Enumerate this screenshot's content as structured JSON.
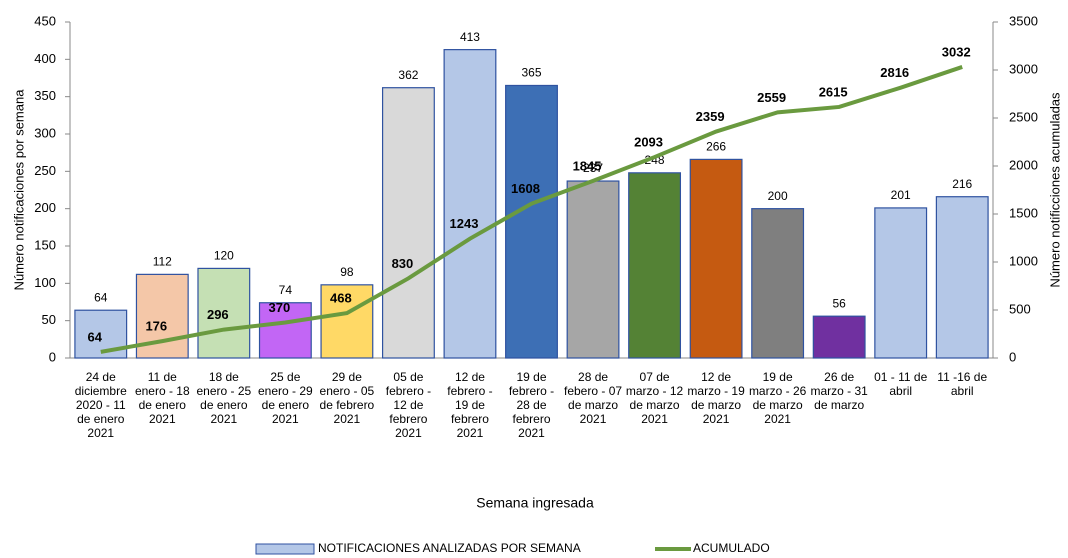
{
  "chart_data": {
    "type": "bar_line",
    "xlabel": "Semana ingresada",
    "ylabel": "Número notificaciones por semana",
    "y2label": "Número notificciones acumuladas",
    "categories": [
      "24 de diciembre 2020 - 11 de enero 2021",
      "11 de enero - 18 de enero 2021",
      "18 de enero - 25 de enero 2021",
      "25 de enero - 29 de enero 2021",
      "29 de enero - 05 de febrero 2021",
      "05 de febrero - 12 de febrero 2021",
      "12 de febrero - 19 de febrero 2021",
      "19 de febrero - 28 de febrero 2021",
      "28 de febero - 07 de marzo 2021",
      "07 de marzo - 12 de marzo 2021",
      "12 de marzo - 19 de marzo 2021",
      "19 de marzo - 26 de marzo 2021",
      "26 de marzo - 31 de marzo",
      "01 - 11 de abril",
      "11 -16 de abril"
    ],
    "series": [
      {
        "name": "NOTIFICACIONES ANALIZADAS POR SEMANA",
        "type": "bar",
        "color": "#b4c7e7",
        "colors": [
          "#b4c7e7",
          "#f4c7a8",
          "#c5e0b4",
          "#c266f5",
          "#ffd966",
          "#d9d9d9",
          "#b4c7e7",
          "#3d6fb5",
          "#a6a6a6",
          "#548235",
          "#c55a11",
          "#7f7f7f",
          "#7030a0",
          "#b4c7e7",
          "#b4c7e7"
        ],
        "values": [
          64,
          112,
          120,
          74,
          98,
          362,
          413,
          365,
          237,
          248,
          266,
          200,
          56,
          201,
          216
        ]
      },
      {
        "name": "ACUMULADO",
        "type": "line",
        "color": "#6a9a3f",
        "axis": "y2",
        "values": [
          64,
          176,
          296,
          370,
          468,
          830,
          1243,
          1608,
          1845,
          2093,
          2359,
          2559,
          2615,
          2816,
          3032
        ]
      }
    ],
    "ylim": [
      0,
      450
    ],
    "yticks": [
      0,
      50,
      100,
      150,
      200,
      250,
      300,
      350,
      400,
      450
    ],
    "y2lim": [
      0,
      3500
    ],
    "y2ticks": [
      0,
      500,
      1000,
      1500,
      2000,
      2500,
      3000,
      3500
    ],
    "legend": "bottom"
  }
}
